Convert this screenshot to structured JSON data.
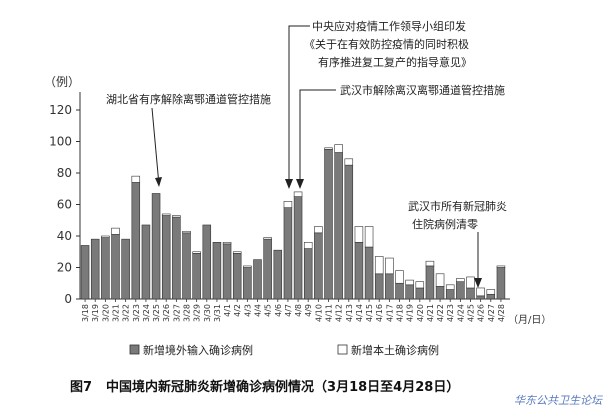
{
  "chart_data": {
    "type": "bar",
    "stacked": true,
    "ylabel": "（例）",
    "xlabel": "（月/日）",
    "ylim": [
      0,
      120
    ],
    "yticks": [
      0,
      20,
      40,
      60,
      80,
      100,
      120
    ],
    "grid": false,
    "legend_position": "bottom",
    "categories": [
      "3/18",
      "3/19",
      "3/20",
      "3/21",
      "3/22",
      "3/23",
      "3/24",
      "3/25",
      "3/26",
      "3/27",
      "3/28",
      "3/29",
      "3/30",
      "3/31",
      "4/1",
      "4/2",
      "4/3",
      "4/4",
      "4/5",
      "4/6",
      "4/7",
      "4/8",
      "4/9",
      "4/10",
      "4/11",
      "4/12",
      "4/13",
      "4/14",
      "4/15",
      "4/16",
      "4/17",
      "4/18",
      "4/19",
      "4/20",
      "4/21",
      "4/22",
      "4/23",
      "4/24",
      "4/25",
      "4/26",
      "4/27",
      "4/28"
    ],
    "series": [
      {
        "name": "新增境外输入确诊病例",
        "color": "#7a7a7a",
        "values": [
          34,
          38,
          39,
          41,
          38,
          74,
          47,
          67,
          53,
          52,
          42,
          29,
          47,
          36,
          35,
          29,
          20,
          25,
          38,
          31,
          58,
          65,
          32,
          42,
          95,
          93,
          85,
          36,
          33,
          16,
          16,
          10,
          9,
          7,
          21,
          8,
          6,
          11,
          7,
          2,
          3,
          20
        ]
      },
      {
        "name": "新增本土确诊病例",
        "color": "#ffffff",
        "values": [
          0,
          0,
          1,
          4,
          0,
          4,
          0,
          0,
          1,
          1,
          1,
          1,
          0,
          0,
          1,
          1,
          1,
          0,
          1,
          0,
          4,
          3,
          4,
          4,
          1,
          5,
          4,
          10,
          13,
          11,
          10,
          8,
          3,
          4,
          3,
          8,
          3,
          2,
          7,
          5,
          3,
          1
        ]
      }
    ],
    "annotations": [
      "湖北省有序解除离鄂通道管控措施",
      "中央应对疫情工作领导小组印发《关于在有效防控疫情的同时积极有序推进复工复产的指导意见》",
      "武汉市解除离汉离鄂通道管控措施",
      "武汉市所有新冠肺炎住院病例清零"
    ]
  },
  "caption": {
    "figure_no": "图7",
    "title": "中国境内新冠肺炎新增确诊病例情况（3月18日至4月28日）"
  },
  "watermark": "华东公共卫生论坛",
  "colors": {
    "axis": "#333333",
    "bar_outline": "#333333",
    "imported_fill": "#7a7a7a",
    "local_fill": "#ffffff"
  }
}
